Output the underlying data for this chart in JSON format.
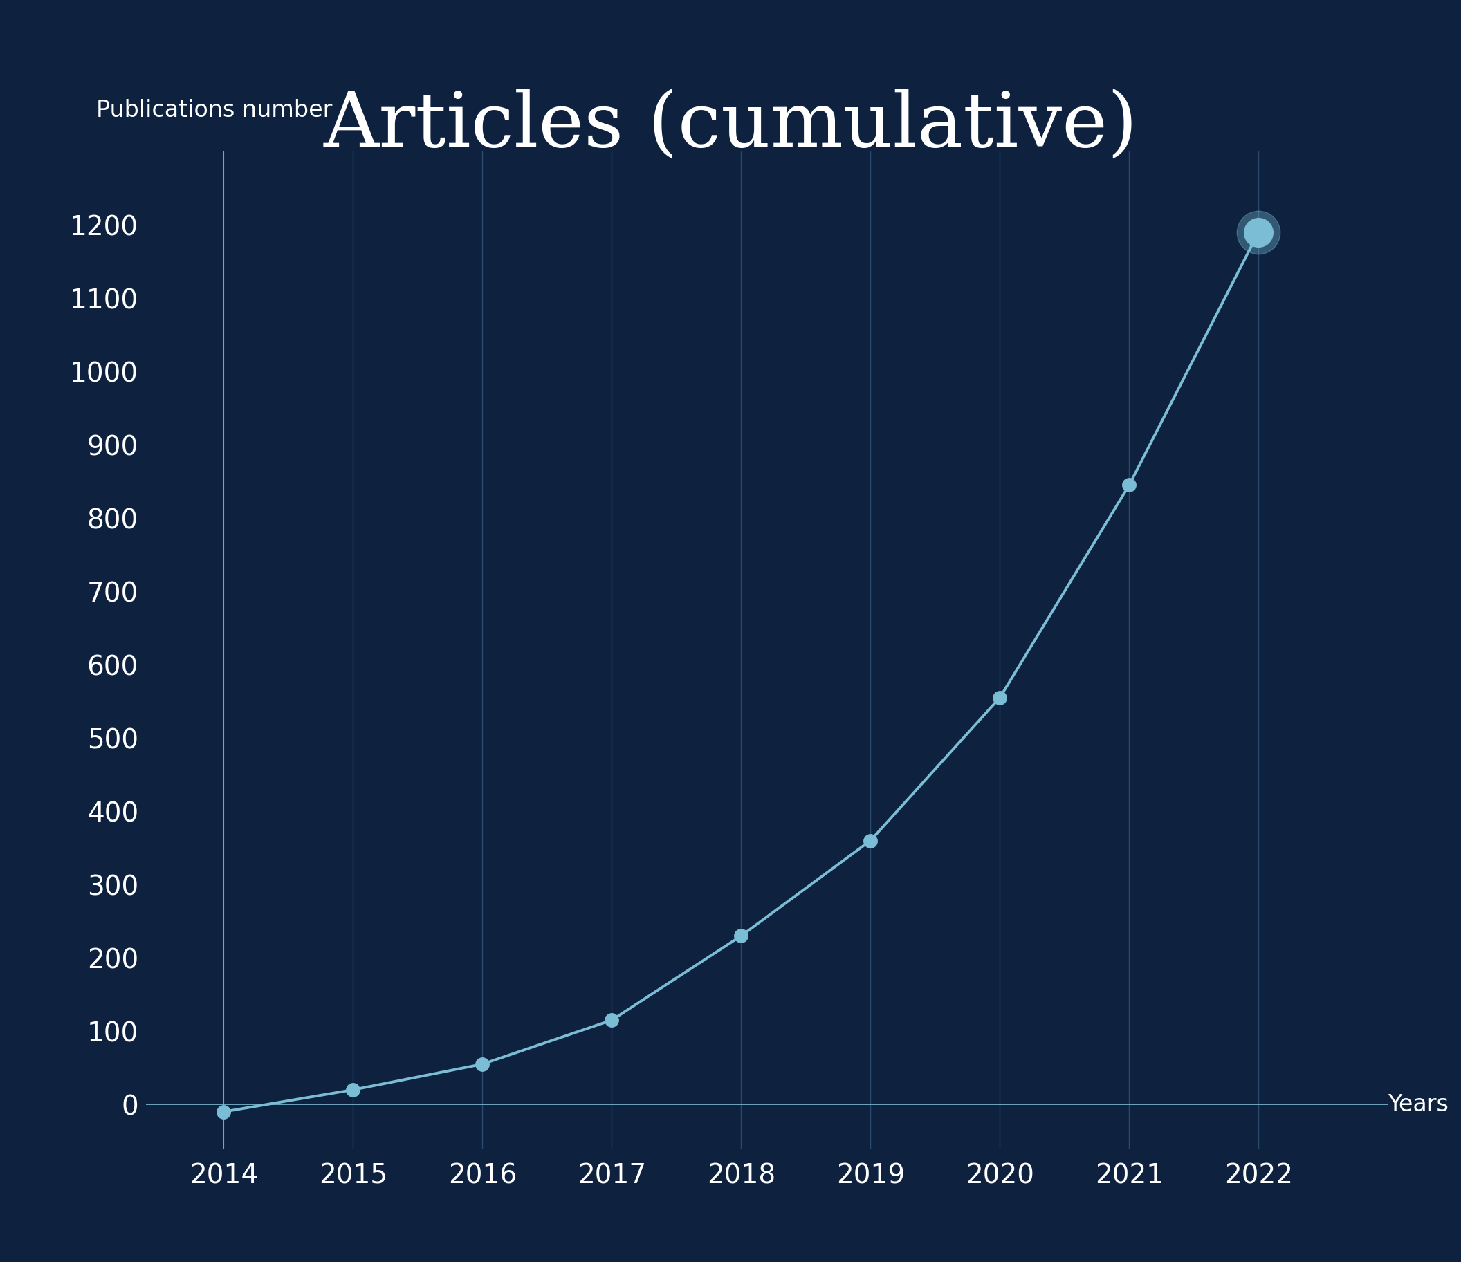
{
  "title": "Articles (cumulative)",
  "ylabel": "Publications number",
  "xlabel_label": "Years",
  "years": [
    2014,
    2015,
    2016,
    2017,
    2018,
    2019,
    2020,
    2021,
    2022
  ],
  "values": [
    -10,
    20,
    55,
    115,
    230,
    360,
    555,
    845,
    1190
  ],
  "ylim": [
    -60,
    1300
  ],
  "xlim": [
    2013.4,
    2023.0
  ],
  "yticks": [
    0,
    100,
    200,
    300,
    400,
    500,
    600,
    700,
    800,
    900,
    1000,
    1100,
    1200
  ],
  "background_color": "#0e2240",
  "line_color": "#7bbdd4",
  "marker_color": "#7bbdd4",
  "grid_color": "#2a4a6e",
  "text_color": "#ffffff",
  "axis_color": "#7bbdd4",
  "title_fontsize": 80,
  "ylabel_fontsize": 24,
  "tick_fontsize": 28,
  "xlabel_fontsize": 24,
  "line_width": 2.8,
  "marker_size": 14,
  "last_marker_size": 30
}
